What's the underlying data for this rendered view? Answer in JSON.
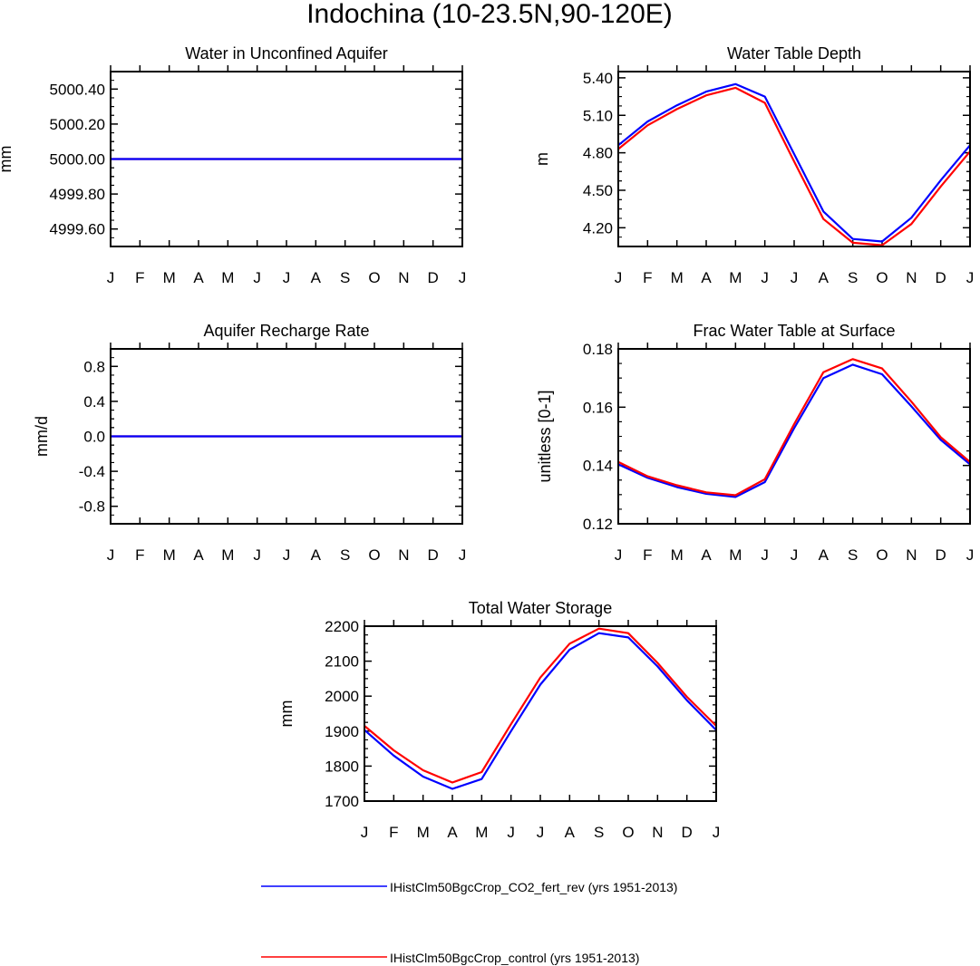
{
  "figure": {
    "title": "Indochina (10-23.5N,90-120E)"
  },
  "months": [
    "J",
    "F",
    "M",
    "A",
    "M",
    "J",
    "J",
    "A",
    "S",
    "O",
    "N",
    "D",
    "J"
  ],
  "legend": {
    "position": "bottom",
    "entries": [
      {
        "label": "IHistClm50BgcCrop_CO2_fert_rev (yrs 1951-2013)",
        "color": "#0000ff"
      },
      {
        "label": "IHistClm50BgcCrop_control (yrs 1951-2013)",
        "color": "#ff0000"
      }
    ]
  },
  "chart_data": [
    {
      "type": "line",
      "title": "Water in Unconfined Aquifer",
      "ylabel": "mm",
      "ylim": [
        4999.5,
        5000.5
      ],
      "yticks": [
        4999.6,
        4999.8,
        5000.0,
        5000.2,
        5000.4
      ],
      "ytick_labels": [
        "4999.60",
        "4999.80",
        "5000.00",
        "5000.20",
        "5000.40"
      ],
      "grid": false,
      "series": [
        {
          "name": "IHistClm50BgcCrop_control (yrs 1951-2013)",
          "color": "#ff0000",
          "values": [
            5000,
            5000,
            5000,
            5000,
            5000,
            5000,
            5000,
            5000,
            5000,
            5000,
            5000,
            5000,
            5000
          ]
        },
        {
          "name": "IHistClm50BgcCrop_CO2_fert_rev (yrs 1951-2013)",
          "color": "#0000ff",
          "values": [
            5000,
            5000,
            5000,
            5000,
            5000,
            5000,
            5000,
            5000,
            5000,
            5000,
            5000,
            5000,
            5000
          ]
        }
      ]
    },
    {
      "type": "line",
      "title": "Water Table Depth",
      "ylabel": "m",
      "ylim": [
        4.05,
        5.45
      ],
      "yticks": [
        4.2,
        4.5,
        4.8,
        5.1,
        5.4
      ],
      "ytick_labels": [
        "4.20",
        "4.50",
        "4.80",
        "5.10",
        "5.40"
      ],
      "grid": false,
      "series": [
        {
          "name": "IHistClm50BgcCrop_CO2_fert_rev (yrs 1951-2013)",
          "color": "#0000ff",
          "values": [
            4.86,
            5.05,
            5.18,
            5.29,
            5.35,
            5.25,
            4.79,
            4.33,
            4.11,
            4.09,
            4.28,
            4.58,
            4.86
          ]
        },
        {
          "name": "IHistClm50BgcCrop_control (yrs 1951-2013)",
          "color": "#ff0000",
          "values": [
            4.83,
            5.02,
            5.15,
            5.26,
            5.32,
            5.2,
            4.73,
            4.27,
            4.08,
            4.06,
            4.23,
            4.53,
            4.81
          ]
        }
      ]
    },
    {
      "type": "line",
      "title": "Aquifer Recharge Rate",
      "ylabel": "mm/d",
      "ylim": [
        -1.0,
        1.0
      ],
      "yticks": [
        -0.8,
        -0.4,
        0.0,
        0.4,
        0.8
      ],
      "ytick_labels": [
        "-0.8",
        "-0.4",
        "0.0",
        "0.4",
        "0.8"
      ],
      "grid": false,
      "series": [
        {
          "name": "IHistClm50BgcCrop_control (yrs 1951-2013)",
          "color": "#ff0000",
          "values": [
            0,
            0,
            0,
            0,
            0,
            0,
            0,
            0,
            0,
            0,
            0,
            0,
            0
          ]
        },
        {
          "name": "IHistClm50BgcCrop_CO2_fert_rev (yrs 1951-2013)",
          "color": "#0000ff",
          "values": [
            0,
            0,
            0,
            0,
            0,
            0,
            0,
            0,
            0,
            0,
            0,
            0,
            0
          ]
        }
      ]
    },
    {
      "type": "line",
      "title": "Frac Water Table at Surface",
      "ylabel": "unitless [0-1]",
      "ylim": [
        0.12,
        0.18
      ],
      "yticks": [
        0.12,
        0.14,
        0.16,
        0.18
      ],
      "ytick_labels": [
        "0.12",
        "0.14",
        "0.16",
        "0.18"
      ],
      "grid": false,
      "series": [
        {
          "name": "IHistClm50BgcCrop_CO2_fert_rev (yrs 1951-2013)",
          "color": "#0000ff",
          "values": [
            0.1404,
            0.1358,
            0.1326,
            0.1303,
            0.1292,
            0.1343,
            0.1528,
            0.17,
            0.1746,
            0.1713,
            0.1603,
            0.1488,
            0.1404
          ]
        },
        {
          "name": "IHistClm50BgcCrop_control (yrs 1951-2013)",
          "color": "#ff0000",
          "values": [
            0.1412,
            0.1363,
            0.1332,
            0.1308,
            0.1298,
            0.1353,
            0.1542,
            0.172,
            0.1765,
            0.1733,
            0.1619,
            0.1497,
            0.1412
          ]
        }
      ]
    },
    {
      "type": "line",
      "title": "Total Water Storage",
      "ylabel": "mm",
      "ylim": [
        1700,
        2200
      ],
      "yticks": [
        1700,
        1800,
        1900,
        2000,
        2100,
        2200
      ],
      "ytick_labels": [
        "1700",
        "1800",
        "1900",
        "2000",
        "2100",
        "2200"
      ],
      "grid": false,
      "series": [
        {
          "name": "IHistClm50BgcCrop_CO2_fert_rev (yrs 1951-2013)",
          "color": "#0000ff",
          "values": [
            1903,
            1830,
            1770,
            1735,
            1763,
            1900,
            2033,
            2133,
            2180,
            2168,
            2085,
            1988,
            1903
          ]
        },
        {
          "name": "IHistClm50BgcCrop_control (yrs 1951-2013)",
          "color": "#ff0000",
          "values": [
            1915,
            1845,
            1788,
            1753,
            1783,
            1920,
            2053,
            2150,
            2193,
            2180,
            2095,
            1998,
            1915
          ]
        }
      ]
    }
  ]
}
